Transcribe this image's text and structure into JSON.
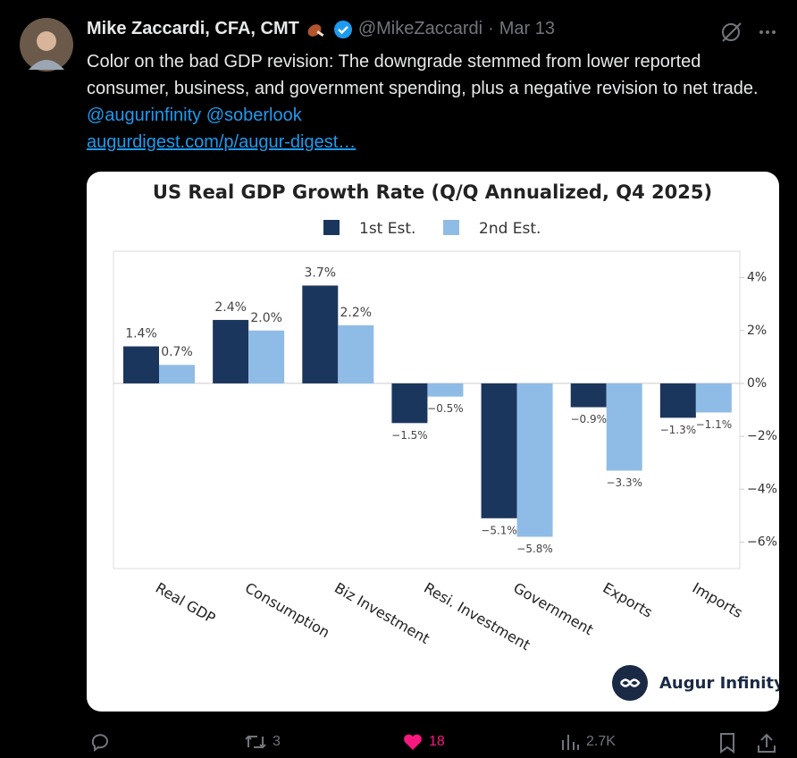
{
  "tweet": {
    "author": "Mike Zaccardi, CFA, CMT",
    "handle": "@MikeZaccardi",
    "separator": "·",
    "date": "Mar 13",
    "text": "Color on the bad GDP revision: The downgrade stemmed from lower reported consumer, business, and government spending, plus a negative revision to net trade.",
    "mentions": [
      "@augurinfinity",
      "@soberlook"
    ],
    "link": "augurdigest.com/p/augur-digest…",
    "retweets": 3,
    "likes": 18,
    "views": "2.7K"
  },
  "brand": "Augur Infinity",
  "chart_data": {
    "type": "bar",
    "title": "US Real GDP Growth Rate (Q/Q Annualized, Q4 2025)",
    "categories": [
      "Real GDP",
      "Consumption",
      "Biz Investment",
      "Resi. Investment",
      "Government",
      "Exports",
      "Imports"
    ],
    "series": [
      {
        "name": "1st Est.",
        "color": "#1b365d",
        "values": [
          1.4,
          2.4,
          3.7,
          -1.5,
          -5.1,
          -0.9,
          -1.3
        ],
        "value_labels": [
          "1.4%",
          "2.4%",
          "3.7%",
          "−1.5%",
          "−5.1%",
          "−0.9%",
          "−1.3%"
        ]
      },
      {
        "name": "2nd Est.",
        "color": "#8fbce6",
        "values": [
          0.7,
          2.0,
          2.2,
          -0.5,
          -5.8,
          -3.3,
          -1.1
        ],
        "value_labels": [
          "0.7%",
          "2.0%",
          "2.2%",
          "−0.5%",
          "−5.8%",
          "−3.3%",
          "−1.1%"
        ]
      }
    ],
    "ylim": [
      -7,
      5
    ],
    "yticks": [
      {
        "value": 4,
        "label": "4%"
      },
      {
        "value": 2,
        "label": "2%"
      },
      {
        "value": 0,
        "label": "0%"
      },
      {
        "value": -2,
        "label": "−2%"
      },
      {
        "value": -4,
        "label": "−4%"
      },
      {
        "value": -6,
        "label": "−6%"
      }
    ],
    "legend": "top"
  }
}
